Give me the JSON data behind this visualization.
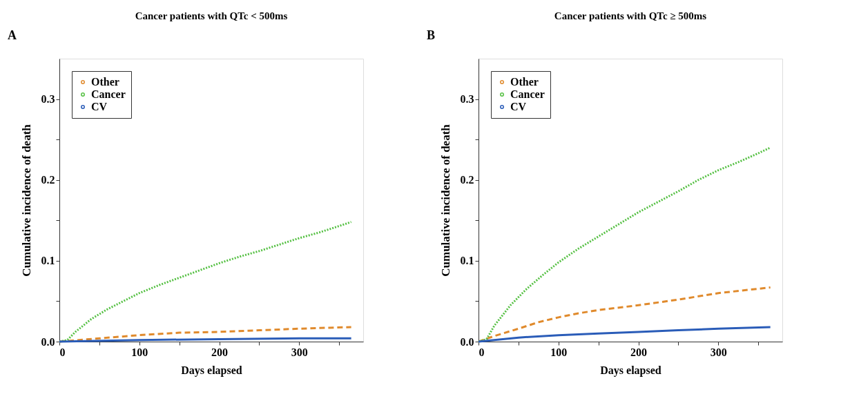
{
  "chart_data": [
    {
      "type": "line",
      "title": "Cancer patients with QTc < 500ms",
      "xlabel": "Days elapsed",
      "ylabel": "Cumulative incidence of death",
      "annotations": [
        "A"
      ],
      "legend": "top left",
      "grid": false,
      "xlim": [
        0,
        380
      ],
      "ylim": [
        0,
        0.35
      ],
      "xticks": [
        0,
        {
          "value": 50,
          "label": null
        },
        100,
        {
          "value": 150,
          "label": null
        },
        200,
        {
          "value": 250,
          "label": null
        },
        300,
        {
          "value": 350,
          "label": null
        }
      ],
      "yticks": [
        {
          "value": 0,
          "label": "0.0"
        },
        {
          "value": 0.05,
          "label": null
        },
        0.1,
        {
          "value": 0.15,
          "label": null
        },
        0.2,
        {
          "value": 0.25,
          "label": null
        },
        0.3
      ],
      "series": [
        {
          "name": "Other",
          "color": "#e08a2c",
          "line_style": "dashed",
          "x": [
            0,
            50,
            100,
            150,
            200,
            250,
            300,
            365
          ],
          "values": [
            0,
            0.004,
            0.008,
            0.011,
            0.012,
            0.014,
            0.016,
            0.018
          ]
        },
        {
          "name": "Cancer",
          "color": "#55c043",
          "line_style": "dotted",
          "x": [
            0,
            10,
            20,
            40,
            60,
            80,
            100,
            125,
            150,
            175,
            200,
            225,
            250,
            275,
            300,
            325,
            350,
            365
          ],
          "values": [
            0,
            0.002,
            0.012,
            0.028,
            0.04,
            0.05,
            0.06,
            0.07,
            0.079,
            0.088,
            0.097,
            0.105,
            0.112,
            0.12,
            0.128,
            0.135,
            0.143,
            0.148
          ]
        },
        {
          "name": "CV",
          "color": "#2a5cb8",
          "line_style": "solid",
          "x": [
            0,
            100,
            200,
            300,
            365
          ],
          "values": [
            0,
            0.002,
            0.003,
            0.004,
            0.004
          ]
        }
      ]
    },
    {
      "type": "line",
      "title": "Cancer patients with QTc ≥ 500ms",
      "xlabel": "Days elapsed",
      "ylabel": "Cumulative incidence of death",
      "annotations": [
        "B"
      ],
      "legend": "top left",
      "grid": false,
      "xlim": [
        0,
        380
      ],
      "ylim": [
        0,
        0.35
      ],
      "xticks": [
        0,
        {
          "value": 50,
          "label": null
        },
        100,
        {
          "value": 150,
          "label": null
        },
        200,
        {
          "value": 250,
          "label": null
        },
        300,
        {
          "value": 350,
          "label": null
        }
      ],
      "yticks": [
        {
          "value": 0,
          "label": "0.0"
        },
        {
          "value": 0.05,
          "label": null
        },
        0.1,
        {
          "value": 0.15,
          "label": null
        },
        0.2,
        {
          "value": 0.25,
          "label": null
        },
        0.3
      ],
      "series": [
        {
          "name": "Other",
          "color": "#e08a2c",
          "line_style": "dashed",
          "x": [
            0,
            20,
            50,
            75,
            100,
            125,
            150,
            200,
            250,
            300,
            365
          ],
          "values": [
            0,
            0.007,
            0.016,
            0.024,
            0.03,
            0.035,
            0.039,
            0.045,
            0.052,
            0.06,
            0.067
          ]
        },
        {
          "name": "Cancer",
          "color": "#55c043",
          "line_style": "dotted",
          "x": [
            0,
            10,
            20,
            40,
            60,
            80,
            100,
            125,
            150,
            175,
            200,
            225,
            250,
            275,
            300,
            325,
            350,
            365
          ],
          "values": [
            0,
            0.003,
            0.02,
            0.045,
            0.065,
            0.082,
            0.098,
            0.115,
            0.13,
            0.145,
            0.16,
            0.173,
            0.186,
            0.2,
            0.212,
            0.222,
            0.233,
            0.24
          ]
        },
        {
          "name": "CV",
          "color": "#2a5cb8",
          "line_style": "solid",
          "x": [
            0,
            50,
            100,
            150,
            200,
            250,
            300,
            365
          ],
          "values": [
            0,
            0.005,
            0.008,
            0.01,
            0.012,
            0.014,
            0.016,
            0.018
          ]
        }
      ]
    }
  ]
}
